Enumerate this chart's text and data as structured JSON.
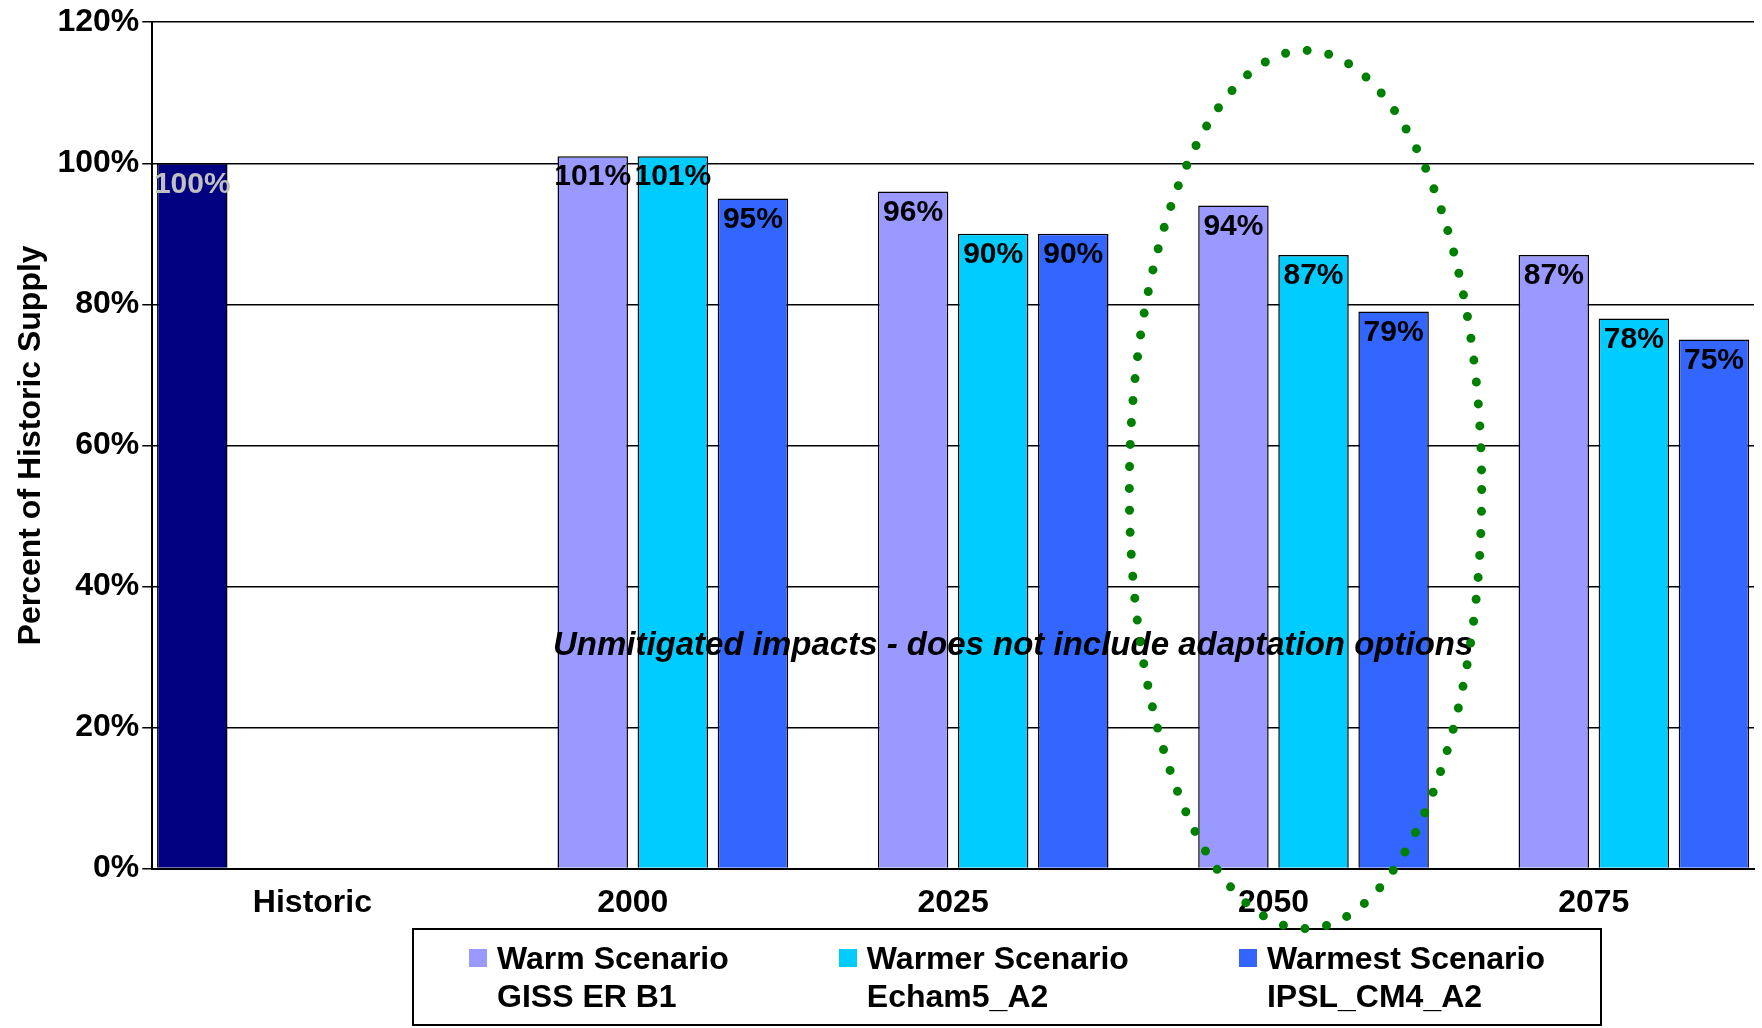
{
  "chart_data": {
    "type": "bar",
    "ylabel": "Percent of Historic Supply",
    "categories": [
      "Historic",
      "2000",
      "2025",
      "2050",
      "2075"
    ],
    "series": [
      {
        "color": "#000080",
        "values": [
          100,
          null,
          null,
          null,
          null
        ],
        "value_labels": [
          "100%",
          null,
          null,
          null,
          null
        ]
      },
      {
        "name": "Warm Scenario\nGISS ER B1",
        "color": "#9999ff",
        "values": [
          null,
          101,
          96,
          94,
          87
        ],
        "value_labels": [
          null,
          "101%",
          "96%",
          "94%",
          "87%"
        ]
      },
      {
        "name": "Warmer Scenario\nEcham5_A2",
        "color": "#00ccff",
        "values": [
          null,
          101,
          90,
          87,
          78
        ],
        "value_labels": [
          null,
          "101%",
          "90%",
          "87%",
          "78%"
        ]
      },
      {
        "name": "Warmest Scenario\nIPSL_CM4_A2",
        "color": "#3366ff",
        "values": [
          null,
          95,
          90,
          79,
          75
        ],
        "value_labels": [
          null,
          "95%",
          "90%",
          "79%",
          "75%"
        ]
      }
    ],
    "ylim": [
      0,
      120
    ],
    "yticks": [
      {
        "value": 0,
        "label": "0%"
      },
      {
        "value": 20,
        "label": "20%"
      },
      {
        "value": 40,
        "label": "40%"
      },
      {
        "value": 60,
        "label": "60%"
      },
      {
        "value": 80,
        "label": "80%"
      },
      {
        "value": 100,
        "label": "100%"
      },
      {
        "value": 120,
        "label": "120%"
      }
    ],
    "grid": "y",
    "legend": "bottom",
    "annotations": [
      "Unmitigated impacts - does not include adaptation options"
    ]
  }
}
